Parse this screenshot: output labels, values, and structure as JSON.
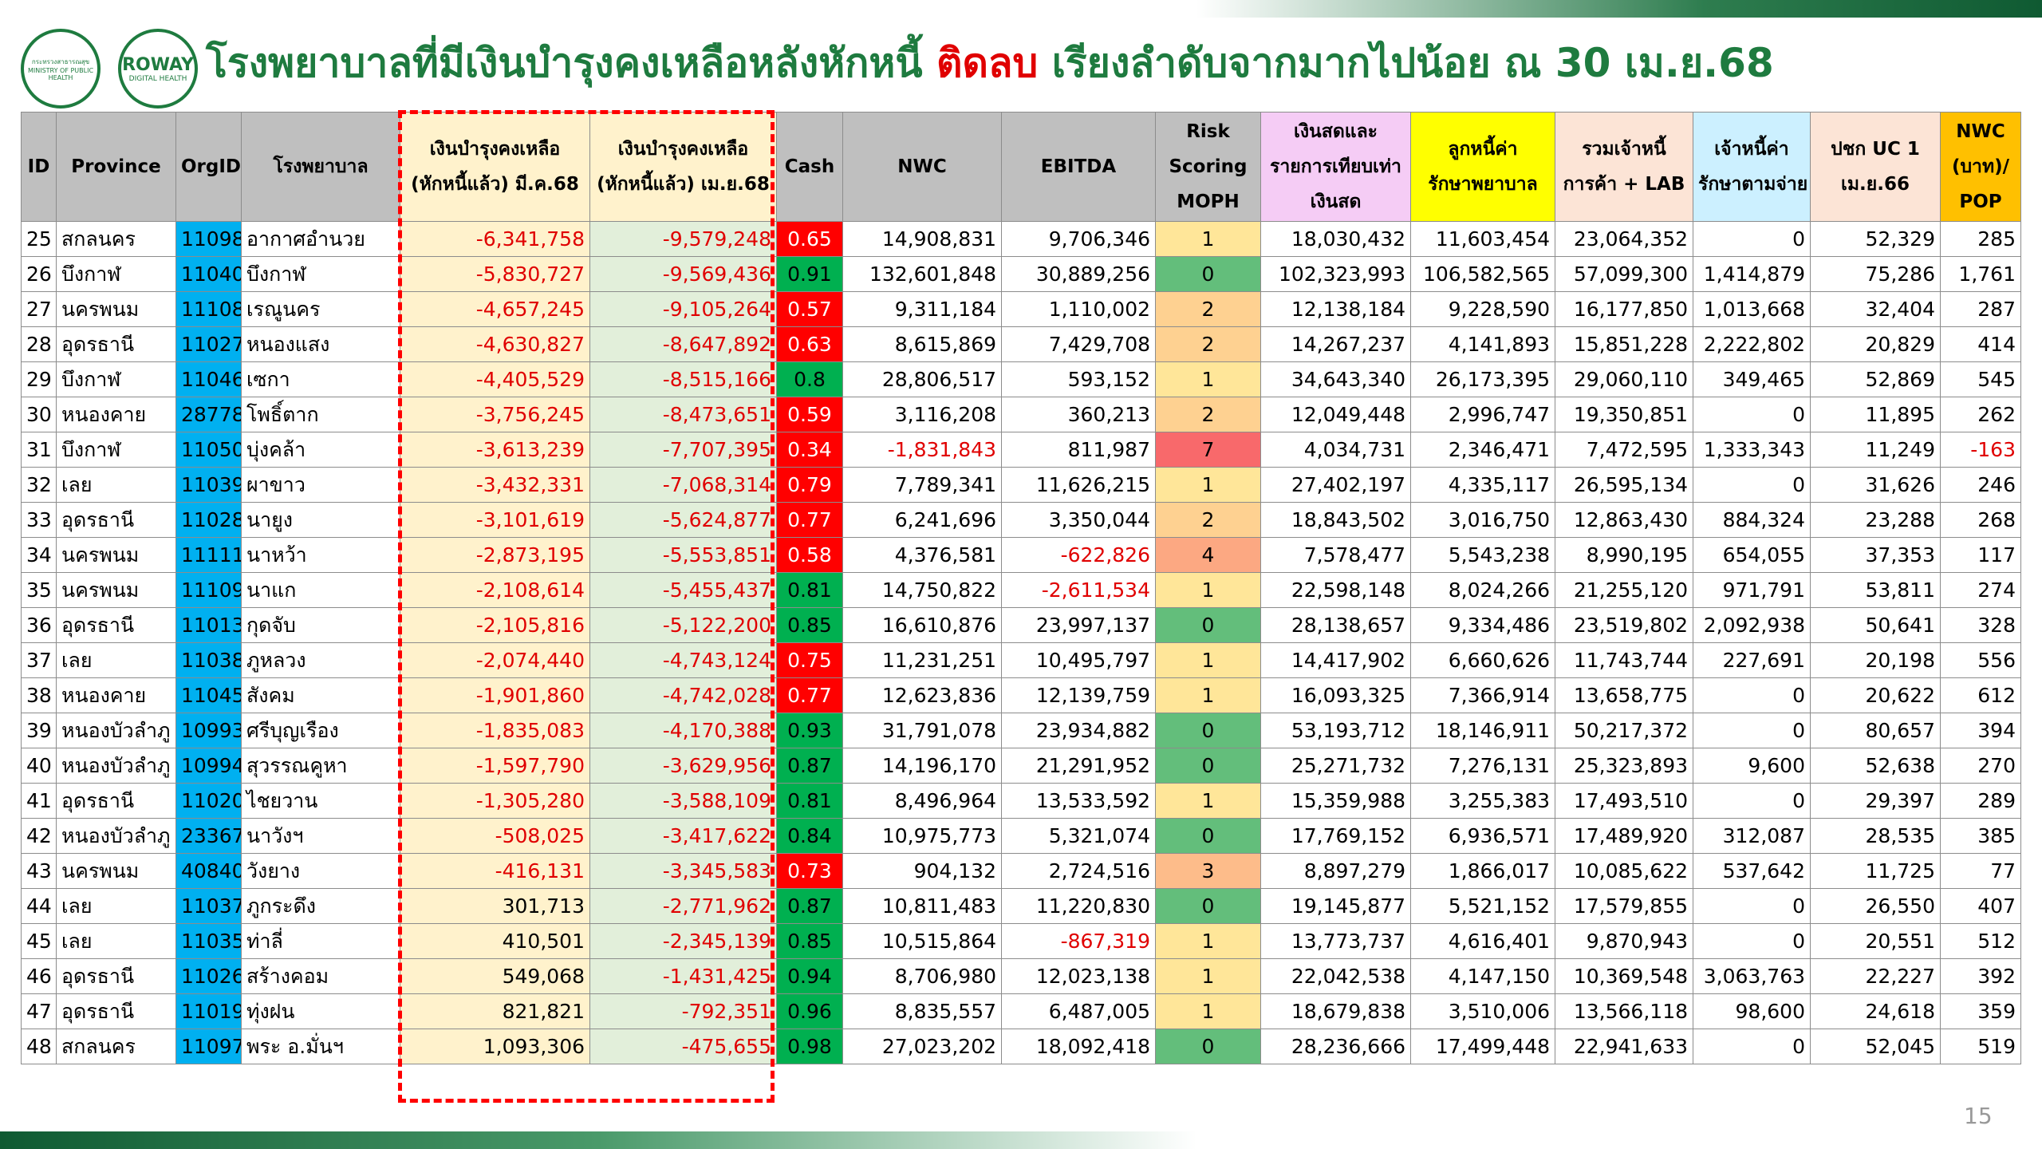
{
  "logos": {
    "ministry": "กระทรวงสาธารณสุข",
    "ministry_en": "MINISTRY OF PUBLIC HEALTH",
    "roway": "ROWAY",
    "roway_sub": "DIGITAL HEALTH"
  },
  "title": {
    "before": "โรงพยาบาลที่มีเงินบำรุงคงเหลือหลังหักหนี้ ",
    "highlight": "ติดลบ",
    "after": " เรียงลำดับจากมากไปน้อย ณ 30 เม.ย.68"
  },
  "table": {
    "headers": [
      [
        "ID"
      ],
      [
        "Province"
      ],
      [
        "OrgID"
      ],
      [
        "โรงพยาบาล"
      ],
      [
        "เงินบำรุงคงเหลือ",
        "(หักหนี้แล้ว) มี.ค.68"
      ],
      [
        "เงินบำรุงคงเหลือ",
        "(หักหนี้แล้ว) เม.ย.68"
      ],
      [
        "Cash"
      ],
      [
        "NWC"
      ],
      [
        "EBITDA"
      ],
      [
        "Risk",
        "Scoring",
        "MOPH"
      ],
      [
        "เงินสดและ",
        "รายการเทียบเท่า",
        "เงินสด"
      ],
      [
        "ลูกหนี้ค่า",
        "รักษาพยาบาล"
      ],
      [
        "รวมเจ้าหนี้",
        "การค้า + LAB"
      ],
      [
        "เจ้าหนี้ค่า",
        "รักษาตามจ่าย"
      ],
      [
        "ปชก UC 1",
        "เม.ย.66"
      ],
      [
        "NWC",
        "(บาท)/",
        "POP"
      ]
    ],
    "rows": [
      [
        "25",
        "สกลนคร",
        "11098",
        "อากาศอำนวย",
        "-6,341,758",
        "-9,579,248",
        "0.65",
        "14,908,831",
        "9,706,346",
        "1",
        "18,030,432",
        "11,603,454",
        "23,064,352",
        "0",
        "52,329",
        "285"
      ],
      [
        "26",
        "บึงกาฬ",
        "11040",
        "บึงกาฬ",
        "-5,830,727",
        "-9,569,436",
        "0.91",
        "132,601,848",
        "30,889,256",
        "0",
        "102,323,993",
        "106,582,565",
        "57,099,300",
        "1,414,879",
        "75,286",
        "1,761"
      ],
      [
        "27",
        "นครพนม",
        "11108",
        "เรณูนคร",
        "-4,657,245",
        "-9,105,264",
        "0.57",
        "9,311,184",
        "1,110,002",
        "2",
        "12,138,184",
        "9,228,590",
        "16,177,850",
        "1,013,668",
        "32,404",
        "287"
      ],
      [
        "28",
        "อุดรธานี",
        "11027",
        "หนองแสง",
        "-4,630,827",
        "-8,647,892",
        "0.63",
        "8,615,869",
        "7,429,708",
        "2",
        "14,267,237",
        "4,141,893",
        "15,851,228",
        "2,222,802",
        "20,829",
        "414"
      ],
      [
        "29",
        "บึงกาฬ",
        "11046",
        "เซกา",
        "-4,405,529",
        "-8,515,166",
        "0.8",
        "28,806,517",
        "593,152",
        "1",
        "34,643,340",
        "26,173,395",
        "29,060,110",
        "349,465",
        "52,869",
        "545"
      ],
      [
        "30",
        "หนองคาย",
        "28778",
        "โพธิ์ตาก",
        "-3,756,245",
        "-8,473,651",
        "0.59",
        "3,116,208",
        "360,213",
        "2",
        "12,049,448",
        "2,996,747",
        "19,350,851",
        "0",
        "11,895",
        "262"
      ],
      [
        "31",
        "บึงกาฬ",
        "11050",
        "บุ่งคล้า",
        "-3,613,239",
        "-7,707,395",
        "0.34",
        "-1,831,843",
        "811,987",
        "7",
        "4,034,731",
        "2,346,471",
        "7,472,595",
        "1,333,343",
        "11,249",
        "-163"
      ],
      [
        "32",
        "เลย",
        "11039",
        "ผาขาว",
        "-3,432,331",
        "-7,068,314",
        "0.79",
        "7,789,341",
        "11,626,215",
        "1",
        "27,402,197",
        "4,335,117",
        "26,595,134",
        "0",
        "31,626",
        "246"
      ],
      [
        "33",
        "อุดรธานี",
        "11028",
        "นายูง",
        "-3,101,619",
        "-5,624,877",
        "0.77",
        "6,241,696",
        "3,350,044",
        "2",
        "18,843,502",
        "3,016,750",
        "12,863,430",
        "884,324",
        "23,288",
        "268"
      ],
      [
        "34",
        "นครพนม",
        "11111",
        "นาหว้า",
        "-2,873,195",
        "-5,553,851",
        "0.58",
        "4,376,581",
        "-622,826",
        "4",
        "7,578,477",
        "5,543,238",
        "8,990,195",
        "654,055",
        "37,353",
        "117"
      ],
      [
        "35",
        "นครพนม",
        "11109",
        "นาแก",
        "-2,108,614",
        "-5,455,437",
        "0.81",
        "14,750,822",
        "-2,611,534",
        "1",
        "22,598,148",
        "8,024,266",
        "21,255,120",
        "971,791",
        "53,811",
        "274"
      ],
      [
        "36",
        "อุดรธานี",
        "11013",
        "กุดจับ",
        "-2,105,816",
        "-5,122,200",
        "0.85",
        "16,610,876",
        "23,997,137",
        "0",
        "28,138,657",
        "9,334,486",
        "23,519,802",
        "2,092,938",
        "50,641",
        "328"
      ],
      [
        "37",
        "เลย",
        "11038",
        "ภูหลวง",
        "-2,074,440",
        "-4,743,124",
        "0.75",
        "11,231,251",
        "10,495,797",
        "1",
        "14,417,902",
        "6,660,626",
        "11,743,744",
        "227,691",
        "20,198",
        "556"
      ],
      [
        "38",
        "หนองคาย",
        "11045",
        "สังคม",
        "-1,901,860",
        "-4,742,028",
        "0.77",
        "12,623,836",
        "12,139,759",
        "1",
        "16,093,325",
        "7,366,914",
        "13,658,775",
        "0",
        "20,622",
        "612"
      ],
      [
        "39",
        "หนองบัวลำภู",
        "10993",
        "ศรีบุญเรือง",
        "-1,835,083",
        "-4,170,388",
        "0.93",
        "31,791,078",
        "23,934,882",
        "0",
        "53,193,712",
        "18,146,911",
        "50,217,372",
        "0",
        "80,657",
        "394"
      ],
      [
        "40",
        "หนองบัวลำภู",
        "10994",
        "สุวรรณคูหา",
        "-1,597,790",
        "-3,629,956",
        "0.87",
        "14,196,170",
        "21,291,952",
        "0",
        "25,271,732",
        "7,276,131",
        "25,323,893",
        "9,600",
        "52,638",
        "270"
      ],
      [
        "41",
        "อุดรธานี",
        "11020",
        "ไชยวาน",
        "-1,305,280",
        "-3,588,109",
        "0.81",
        "8,496,964",
        "13,533,592",
        "1",
        "15,359,988",
        "3,255,383",
        "17,493,510",
        "0",
        "29,397",
        "289"
      ],
      [
        "42",
        "หนองบัวลำภู",
        "23367",
        "นาวังฯ",
        "-508,025",
        "-3,417,622",
        "0.84",
        "10,975,773",
        "5,321,074",
        "0",
        "17,769,152",
        "6,936,571",
        "17,489,920",
        "312,087",
        "28,535",
        "385"
      ],
      [
        "43",
        "นครพนม",
        "40840",
        "วังยาง",
        "-416,131",
        "-3,345,583",
        "0.73",
        "904,132",
        "2,724,516",
        "3",
        "8,897,279",
        "1,866,017",
        "10,085,622",
        "537,642",
        "11,725",
        "77"
      ],
      [
        "44",
        "เลย",
        "11037",
        "ภูกระดึง",
        "301,713",
        "-2,771,962",
        "0.87",
        "10,811,483",
        "11,220,830",
        "0",
        "19,145,877",
        "5,521,152",
        "17,579,855",
        "0",
        "26,550",
        "407"
      ],
      [
        "45",
        "เลย",
        "11035",
        "ท่าลี่",
        "410,501",
        "-2,345,139",
        "0.85",
        "10,515,864",
        "-867,319",
        "1",
        "13,773,737",
        "4,616,401",
        "9,870,943",
        "0",
        "20,551",
        "512"
      ],
      [
        "46",
        "อุดรธานี",
        "11026",
        "สร้างคอม",
        "549,068",
        "-1,431,425",
        "0.94",
        "8,706,980",
        "12,023,138",
        "1",
        "22,042,538",
        "4,147,150",
        "10,369,548",
        "3,063,763",
        "22,227",
        "392"
      ],
      [
        "47",
        "อุดรธานี",
        "11019",
        "ทุ่งฝน",
        "821,821",
        "-792,351",
        "0.96",
        "8,835,557",
        "6,487,005",
        "1",
        "18,679,838",
        "3,510,006",
        "13,566,118",
        "98,600",
        "24,618",
        "359"
      ],
      [
        "48",
        "สกลนคร",
        "11097",
        "พระ อ.มั่นฯ",
        "1,093,306",
        "-475,655",
        "0.98",
        "27,023,202",
        "18,092,418",
        "0",
        "28,236,666",
        "17,499,448",
        "22,941,633",
        "0",
        "52,045",
        "519"
      ]
    ]
  },
  "page_number": "15"
}
